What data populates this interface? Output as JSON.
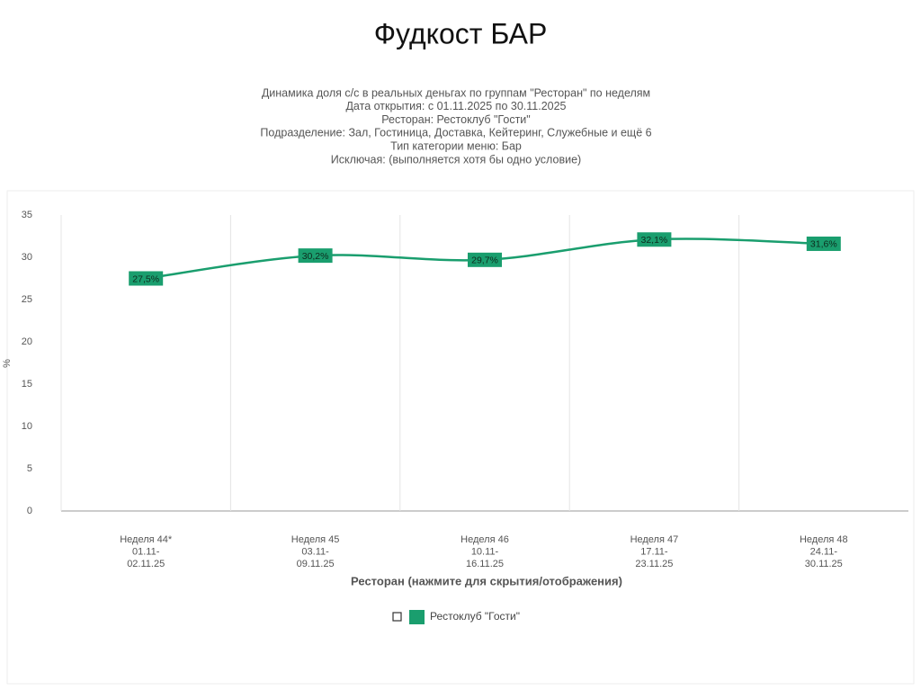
{
  "slide_title": "Фудкост БАР",
  "chart_data": {
    "type": "line",
    "subtitle": [
      "Динамика доля с/с в реальных деньгах по группам \"Ресторан\" по неделям",
      "Дата открытия: с 01.11.2025 по 30.11.2025",
      "Ресторан: Рестоклуб \"Гости\"",
      "Подразделение: Зал, Гостиница, Доставка, Кейтеринг, Служебные и ещё 6",
      "Тип категории меню: Бар",
      "Исключая: (выполняется хотя бы одно условие)"
    ],
    "categories": [
      [
        "Неделя 44*",
        "01.11-",
        "02.11.25"
      ],
      [
        "Неделя 45",
        "03.11-",
        "09.11.25"
      ],
      [
        "Неделя 46",
        "10.11-",
        "16.11.25"
      ],
      [
        "Неделя 47",
        "17.11-",
        "23.11.25"
      ],
      [
        "Неделя 48",
        "24.11-",
        "30.11.25"
      ]
    ],
    "series": [
      {
        "name": "Рестоклуб \"Гости\"",
        "color": "#1a9e6e",
        "values": [
          27.5,
          30.2,
          29.7,
          32.1,
          31.6
        ],
        "value_labels": [
          "27,5%",
          "30,2%",
          "29,7%",
          "32,1%",
          "31,6%"
        ]
      }
    ],
    "ylabel": "%",
    "xlabel": "Ресторан (нажмите для скрытия/отображения)",
    "ylim": [
      0,
      35
    ],
    "yticks": [
      0,
      5,
      10,
      15,
      20,
      25,
      30,
      35
    ],
    "grid": true,
    "smooth": true
  }
}
